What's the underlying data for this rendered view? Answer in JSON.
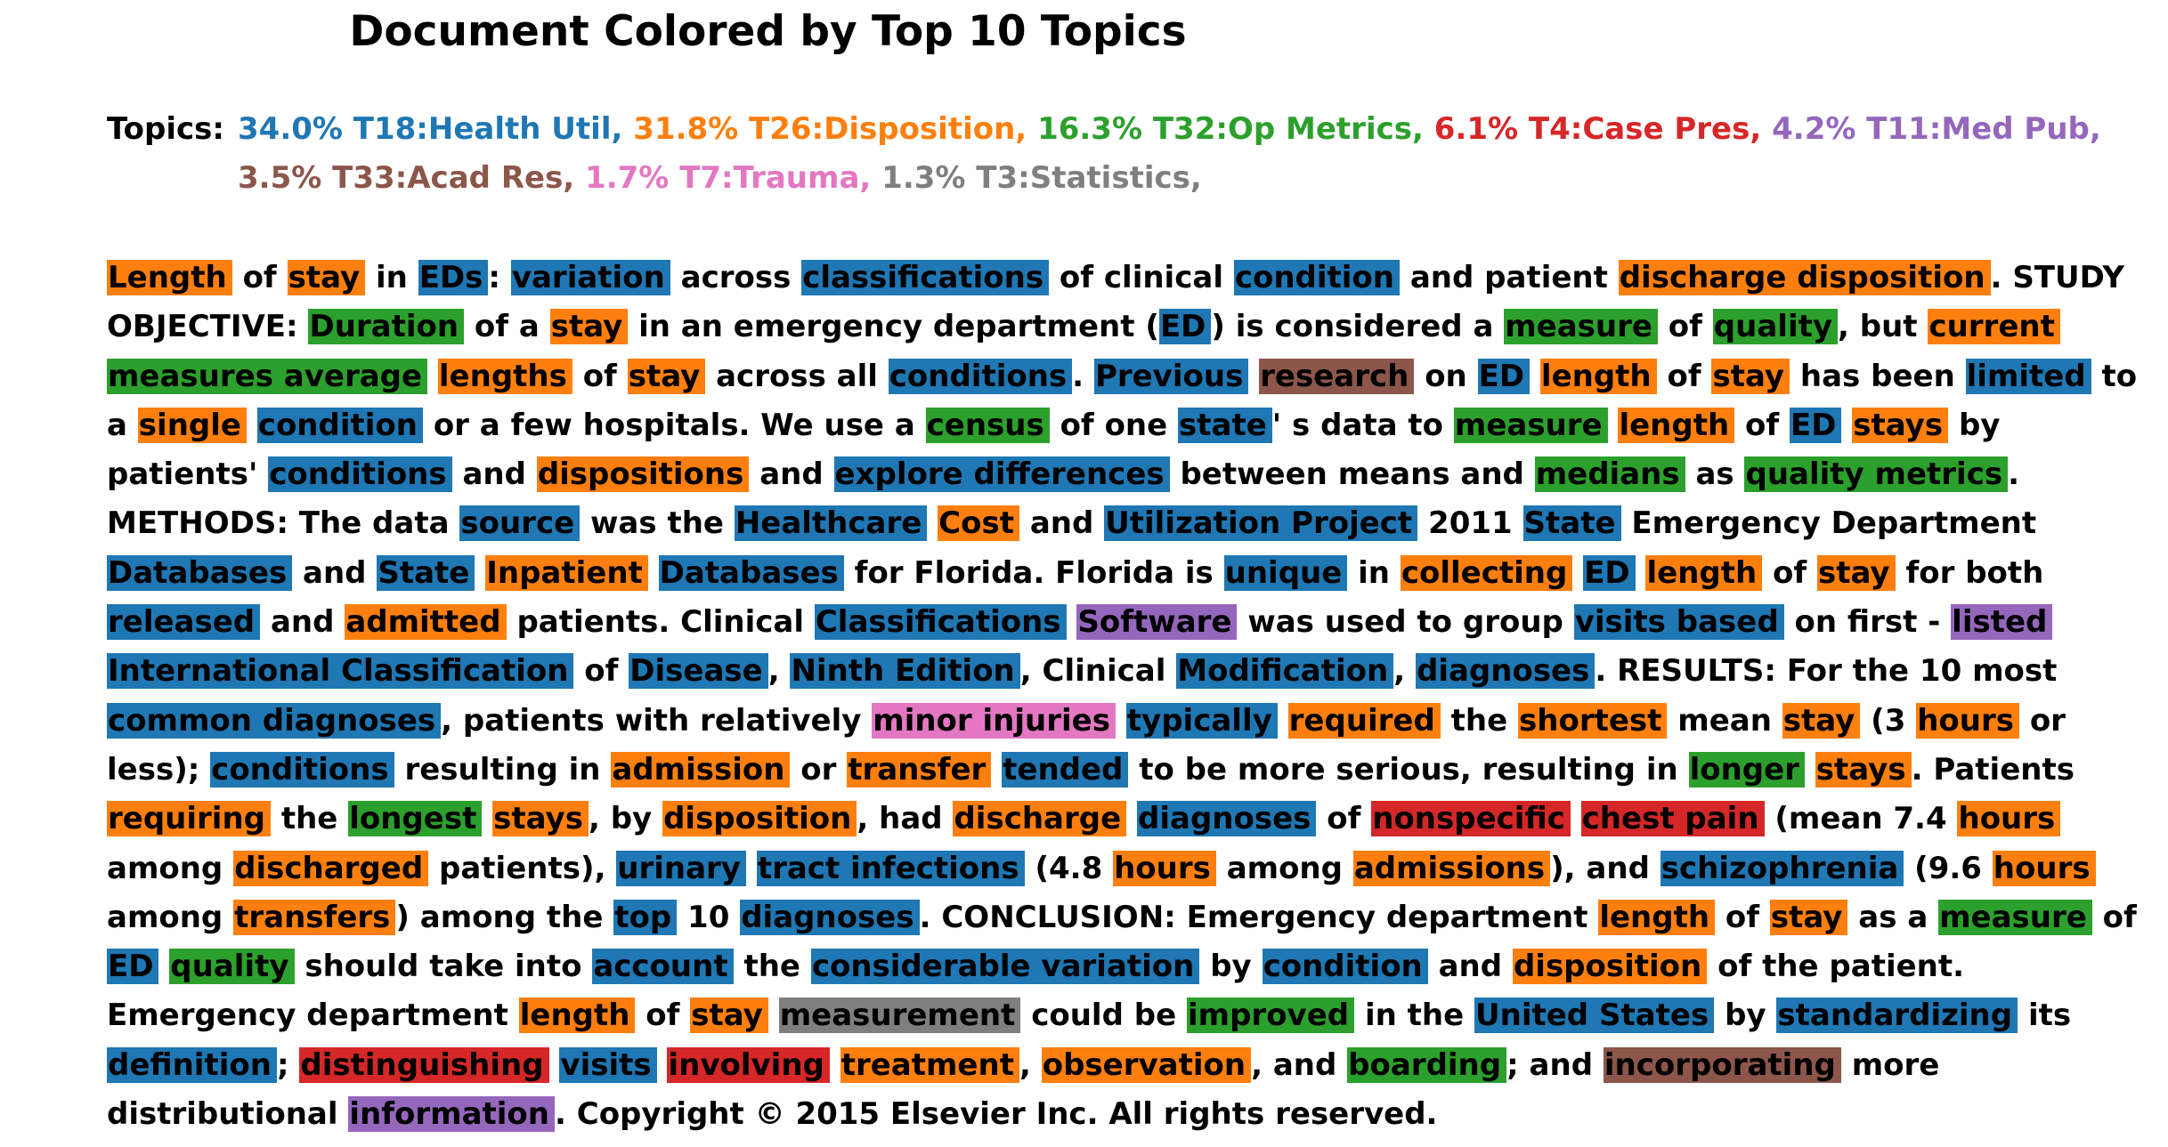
{
  "title": "Document Colored by Top 10 Topics",
  "colors": {
    "T18": "#1f77b4",
    "T26": "#ff7f0e",
    "T32": "#2ca02c",
    "T4": "#d62728",
    "T11": "#9467bd",
    "T33": "#8c564b",
    "T7": "#e377c2",
    "T3": "#7f7f7f"
  },
  "topics_label": "Topics:",
  "topics": [
    {
      "id": "T18",
      "text": "34.0% T18:Health Util,"
    },
    {
      "id": "T26",
      "text": "31.8% T26:Disposition,"
    },
    {
      "id": "T32",
      "text": "16.3% T32:Op Metrics,"
    },
    {
      "id": "T4",
      "text": "6.1% T4:Case Pres,"
    },
    {
      "id": "T11",
      "text": "4.2% T11:Med Pub,"
    },
    {
      "id": "T33",
      "text": "3.5% T33:Acad Res,"
    },
    {
      "id": "T7",
      "text": "1.7% T7:Trauma,"
    },
    {
      "id": "T3",
      "text": "1.3% T3:Statistics,"
    }
  ],
  "document": [
    [
      "Length",
      "T26"
    ],
    [
      "of",
      ""
    ],
    [
      "stay",
      "T26"
    ],
    [
      "in",
      ""
    ],
    [
      "EDs",
      "T18"
    ],
    [
      ":",
      ""
    ],
    [
      "variation",
      "T18"
    ],
    [
      "across",
      ""
    ],
    [
      "classifications",
      "T18"
    ],
    [
      "of clinical",
      ""
    ],
    [
      "condition",
      "T18"
    ],
    [
      "and patient",
      ""
    ],
    [
      "discharge disposition",
      "T26"
    ],
    [
      ".",
      ""
    ],
    [
      "STUDY OBJECTIVE:",
      ""
    ],
    [
      "Duration",
      "T32"
    ],
    [
      "of a",
      ""
    ],
    [
      "stay",
      "T26"
    ],
    [
      "in an emergency department (",
      ""
    ],
    [
      "ED",
      "T18"
    ],
    [
      ") is considered a",
      ""
    ],
    [
      "measure",
      "T32"
    ],
    [
      "of",
      ""
    ],
    [
      "quality",
      "T32"
    ],
    [
      ", but",
      ""
    ],
    [
      "current",
      "T26"
    ],
    [
      "measures average",
      "T32"
    ],
    [
      "lengths",
      "T26"
    ],
    [
      "of",
      ""
    ],
    [
      "stay",
      "T26"
    ],
    [
      "across all",
      ""
    ],
    [
      "conditions",
      "T18"
    ],
    [
      ".",
      ""
    ],
    [
      "Previous",
      "T18"
    ],
    [
      "research",
      "T33"
    ],
    [
      "on",
      ""
    ],
    [
      "ED",
      "T18"
    ],
    [
      "length",
      "T26"
    ],
    [
      "of",
      ""
    ],
    [
      "stay",
      "T26"
    ],
    [
      "has been",
      ""
    ],
    [
      "limited",
      "T18"
    ],
    [
      "to a",
      ""
    ],
    [
      "single",
      "T26"
    ],
    [
      "condition",
      "T18"
    ],
    [
      "or a few hospitals. We use a",
      ""
    ],
    [
      "census",
      "T32"
    ],
    [
      "of one",
      ""
    ],
    [
      "state",
      "T18"
    ],
    [
      "' s data to",
      ""
    ],
    [
      "measure",
      "T32"
    ],
    [
      "length",
      "T26"
    ],
    [
      "of",
      ""
    ],
    [
      "ED",
      "T18"
    ],
    [
      "stays",
      "T26"
    ],
    [
      "by patients'",
      ""
    ],
    [
      "conditions",
      "T18"
    ],
    [
      "and",
      ""
    ],
    [
      "dispositions",
      "T26"
    ],
    [
      "and",
      ""
    ],
    [
      "explore differences",
      "T18"
    ],
    [
      "between means and",
      ""
    ],
    [
      "medians",
      "T32"
    ],
    [
      "as",
      ""
    ],
    [
      "quality metrics",
      "T32"
    ],
    [
      ". METHODS: The data",
      ""
    ],
    [
      "source",
      "T18"
    ],
    [
      "was the",
      ""
    ],
    [
      "Healthcare",
      "T18"
    ],
    [
      "Cost",
      "T26"
    ],
    [
      "and",
      ""
    ],
    [
      "Utilization Project",
      "T18"
    ],
    [
      "2011",
      ""
    ],
    [
      "State",
      "T18"
    ],
    [
      "Emergency Department",
      ""
    ],
    [
      "Databases",
      "T18"
    ],
    [
      "and",
      ""
    ],
    [
      "State",
      "T18"
    ],
    [
      "Inpatient",
      "T26"
    ],
    [
      "Databases",
      "T18"
    ],
    [
      "for Florida. Florida is",
      ""
    ],
    [
      "unique",
      "T18"
    ],
    [
      "in",
      ""
    ],
    [
      "collecting",
      "T26"
    ],
    [
      "ED",
      "T18"
    ],
    [
      "length",
      "T26"
    ],
    [
      "of",
      ""
    ],
    [
      "stay",
      "T26"
    ],
    [
      "for both",
      ""
    ],
    [
      "released",
      "T18"
    ],
    [
      "and",
      ""
    ],
    [
      "admitted",
      "T26"
    ],
    [
      "patients.",
      ""
    ],
    [
      "Clinical",
      ""
    ],
    [
      "Classifications",
      "T18"
    ],
    [
      "Software",
      "T11"
    ],
    [
      "was used to group",
      ""
    ],
    [
      "visits based",
      "T18"
    ],
    [
      "on first -",
      ""
    ],
    [
      "listed",
      "T11"
    ],
    [
      "International Classification",
      "T18"
    ],
    [
      "of",
      ""
    ],
    [
      "Disease",
      "T18"
    ],
    [
      ",",
      ""
    ],
    [
      "Ninth Edition",
      "T18"
    ],
    [
      ", Clinical",
      ""
    ],
    [
      "Modification",
      "T18"
    ],
    [
      ",",
      ""
    ],
    [
      "diagnoses",
      "T18"
    ],
    [
      ". RESULTS: For the 10 most",
      ""
    ],
    [
      "common diagnoses",
      "T18"
    ],
    [
      ", patients",
      ""
    ],
    [
      "with relatively",
      ""
    ],
    [
      "minor injuries",
      "T7"
    ],
    [
      "typically",
      "T18"
    ],
    [
      "required",
      "T26"
    ],
    [
      "the",
      ""
    ],
    [
      "shortest",
      "T26"
    ],
    [
      "mean",
      ""
    ],
    [
      "stay",
      "T26"
    ],
    [
      "(3",
      ""
    ],
    [
      "hours",
      "T26"
    ],
    [
      "or less);",
      ""
    ],
    [
      "conditions",
      "T18"
    ],
    [
      "resulting in",
      ""
    ],
    [
      "admission",
      "T26"
    ],
    [
      "or",
      ""
    ],
    [
      "transfer",
      "T26"
    ],
    [
      "tended",
      "T18"
    ],
    [
      "to be more serious, resulting in",
      ""
    ],
    [
      "longer",
      "T32"
    ],
    [
      "stays",
      "T26"
    ],
    [
      ". Patients",
      ""
    ],
    [
      "requiring",
      "T26"
    ],
    [
      "the",
      ""
    ],
    [
      "longest",
      "T32"
    ],
    [
      "stays",
      "T26"
    ],
    [
      ", by",
      ""
    ],
    [
      "disposition",
      "T26"
    ],
    [
      ", had",
      ""
    ],
    [
      "discharge",
      "T26"
    ],
    [
      "diagnoses",
      "T18"
    ],
    [
      "of",
      ""
    ],
    [
      "nonspecific",
      "T4"
    ],
    [
      "chest pain",
      "T4"
    ],
    [
      "(mean 7.4",
      ""
    ],
    [
      "hours",
      "T26"
    ],
    [
      "among",
      ""
    ],
    [
      "discharged",
      "T26"
    ],
    [
      "patients),",
      ""
    ],
    [
      "urinary",
      "T18"
    ],
    [
      "tract infections",
      "T18"
    ],
    [
      "(4.8",
      ""
    ],
    [
      "hours",
      "T26"
    ],
    [
      "among",
      ""
    ],
    [
      "admissions",
      "T26"
    ],
    [
      "), and",
      ""
    ],
    [
      "schizophrenia",
      "T18"
    ],
    [
      "(9.6",
      ""
    ],
    [
      "hours",
      "T26"
    ],
    [
      "among",
      ""
    ],
    [
      "transfers",
      "T26"
    ],
    [
      ") among the",
      ""
    ],
    [
      "top",
      "T18"
    ],
    [
      "10",
      ""
    ],
    [
      "diagnoses",
      "T18"
    ],
    [
      ". CONCLUSION: Emergency department",
      ""
    ],
    [
      "length",
      "T26"
    ],
    [
      "of",
      ""
    ],
    [
      "stay",
      "T26"
    ],
    [
      "as a",
      ""
    ],
    [
      "measure",
      "T32"
    ],
    [
      "of",
      ""
    ],
    [
      "ED",
      "T18"
    ],
    [
      "quality",
      "T32"
    ],
    [
      "should take into",
      ""
    ],
    [
      "account",
      "T18"
    ],
    [
      "the",
      ""
    ],
    [
      "considerable variation",
      "T18"
    ],
    [
      "by",
      ""
    ],
    [
      "condition",
      "T18"
    ],
    [
      "and",
      ""
    ],
    [
      "disposition",
      "T26"
    ],
    [
      "of the patient. Emergency department",
      ""
    ],
    [
      "length",
      "T26"
    ],
    [
      "of",
      ""
    ],
    [
      "stay",
      "T26"
    ],
    [
      "measurement",
      "T3"
    ],
    [
      "could be",
      ""
    ],
    [
      "improved",
      "T32"
    ],
    [
      "in the",
      ""
    ],
    [
      "United States",
      "T18"
    ],
    [
      "by",
      ""
    ],
    [
      "standardizing",
      "T18"
    ],
    [
      "its",
      ""
    ],
    [
      "definition",
      "T18"
    ],
    [
      ";",
      ""
    ],
    [
      "distinguishing",
      "T4"
    ],
    [
      "visits",
      "T18"
    ],
    [
      "involving",
      "T4"
    ],
    [
      "treatment",
      "T26"
    ],
    [
      ",",
      ""
    ],
    [
      "observation",
      "T26"
    ],
    [
      ", and",
      ""
    ],
    [
      "boarding",
      "T32"
    ],
    [
      "; and",
      ""
    ],
    [
      "incorporating",
      "T33"
    ],
    [
      "more distributional",
      ""
    ],
    [
      "information",
      "T11"
    ],
    [
      ". Copyright © 2015 Elsevier Inc. All rights reserved.",
      ""
    ]
  ]
}
